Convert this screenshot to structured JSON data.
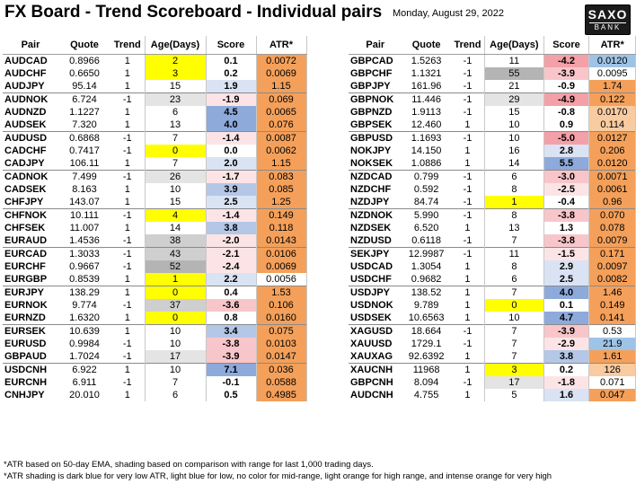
{
  "header": {
    "title": "FX Board - Trend Scoreboard - Individual pairs",
    "date": "Monday, August 29, 2022",
    "logo_top": "SAXO",
    "logo_bottom": "BANK"
  },
  "columns": [
    "Pair",
    "Quote",
    "Trend",
    "Age(Days)",
    "Score",
    "ATR*"
  ],
  "colors": {
    "age_yellow": "#ffff00",
    "age_grey_dark": "#b4b4b4",
    "age_grey_mid": "#cfcfcf",
    "age_grey_light": "#e4e4e4",
    "score_blue_dark": "#8eaadb",
    "score_blue_mid": "#b4c7e7",
    "score_blue_light": "#dae3f3",
    "score_red_dark": "#f4a0a8",
    "score_red_mid": "#f8c6ca",
    "score_red_light": "#fce4e6",
    "atr_dark_blue": "#9dc3e6",
    "atr_light_blue": "#ddebf7",
    "atr_light_orange": "#f8cba0",
    "atr_orange": "#f4a05a"
  },
  "left_groups": [
    [
      {
        "pair": "AUDCAD",
        "quote": "0.8966",
        "trend": "1",
        "age": "2",
        "score": "0.1",
        "atr": "0.0072",
        "age_tone": "yellow",
        "score_tone": "",
        "atr_tone": "orange"
      },
      {
        "pair": "AUDCHF",
        "quote": "0.6650",
        "trend": "1",
        "age": "3",
        "score": "0.2",
        "atr": "0.0069",
        "age_tone": "yellow",
        "score_tone": "",
        "atr_tone": "orange"
      },
      {
        "pair": "AUDJPY",
        "quote": "95.14",
        "trend": "1",
        "age": "15",
        "score": "1.9",
        "atr": "1.15",
        "age_tone": "",
        "score_tone": "blue_light",
        "atr_tone": "orange"
      }
    ],
    [
      {
        "pair": "AUDNOK",
        "quote": "6.724",
        "trend": "-1",
        "age": "23",
        "score": "-1.9",
        "atr": "0.069",
        "age_tone": "grey_light",
        "score_tone": "red_light",
        "atr_tone": "orange"
      },
      {
        "pair": "AUDNZD",
        "quote": "1.1227",
        "trend": "1",
        "age": "6",
        "score": "4.5",
        "atr": "0.0065",
        "age_tone": "",
        "score_tone": "blue_dark",
        "atr_tone": "orange"
      },
      {
        "pair": "AUDSEK",
        "quote": "7.320",
        "trend": "1",
        "age": "13",
        "score": "4.0",
        "atr": "0.076",
        "age_tone": "",
        "score_tone": "blue_dark",
        "atr_tone": "orange"
      }
    ],
    [
      {
        "pair": "AUDUSD",
        "quote": "0.6868",
        "trend": "-1",
        "age": "7",
        "score": "-1.4",
        "atr": "0.0087",
        "age_tone": "",
        "score_tone": "red_light",
        "atr_tone": "orange"
      },
      {
        "pair": "CADCHF",
        "quote": "0.7417",
        "trend": "-1",
        "age": "0",
        "score": "0.0",
        "atr": "0.0062",
        "age_tone": "yellow",
        "score_tone": "",
        "atr_tone": "orange"
      },
      {
        "pair": "CADJPY",
        "quote": "106.11",
        "trend": "1",
        "age": "7",
        "score": "2.0",
        "atr": "1.15",
        "age_tone": "",
        "score_tone": "blue_light",
        "atr_tone": "orange"
      }
    ],
    [
      {
        "pair": "CADNOK",
        "quote": "7.499",
        "trend": "-1",
        "age": "26",
        "score": "-1.7",
        "atr": "0.083",
        "age_tone": "grey_light",
        "score_tone": "red_light",
        "atr_tone": "orange"
      },
      {
        "pair": "CADSEK",
        "quote": "8.163",
        "trend": "1",
        "age": "10",
        "score": "3.9",
        "atr": "0.085",
        "age_tone": "",
        "score_tone": "blue_mid",
        "atr_tone": "orange"
      },
      {
        "pair": "CHFJPY",
        "quote": "143.07",
        "trend": "1",
        "age": "15",
        "score": "2.5",
        "atr": "1.25",
        "age_tone": "",
        "score_tone": "blue_light",
        "atr_tone": "orange"
      }
    ],
    [
      {
        "pair": "CHFNOK",
        "quote": "10.111",
        "trend": "-1",
        "age": "4",
        "score": "-1.4",
        "atr": "0.149",
        "age_tone": "yellow",
        "score_tone": "red_light",
        "atr_tone": "orange"
      },
      {
        "pair": "CHFSEK",
        "quote": "11.007",
        "trend": "1",
        "age": "14",
        "score": "3.8",
        "atr": "0.118",
        "age_tone": "",
        "score_tone": "blue_mid",
        "atr_tone": "orange"
      },
      {
        "pair": "EURAUD",
        "quote": "1.4536",
        "trend": "-1",
        "age": "38",
        "score": "-2.0",
        "atr": "0.0143",
        "age_tone": "grey_mid",
        "score_tone": "red_light",
        "atr_tone": "orange"
      }
    ],
    [
      {
        "pair": "EURCAD",
        "quote": "1.3033",
        "trend": "-1",
        "age": "43",
        "score": "-2.1",
        "atr": "0.0106",
        "age_tone": "grey_mid",
        "score_tone": "red_light",
        "atr_tone": "orange"
      },
      {
        "pair": "EURCHF",
        "quote": "0.9667",
        "trend": "-1",
        "age": "52",
        "score": "-2.4",
        "atr": "0.0069",
        "age_tone": "grey_dark",
        "score_tone": "red_light",
        "atr_tone": "orange"
      },
      {
        "pair": "EURGBP",
        "quote": "0.8539",
        "trend": "1",
        "age": "1",
        "score": "2.2",
        "atr": "0.0056",
        "age_tone": "yellow",
        "score_tone": "blue_light",
        "atr_tone": ""
      }
    ],
    [
      {
        "pair": "EURJPY",
        "quote": "138.29",
        "trend": "1",
        "age": "0",
        "score": "0.4",
        "atr": "1.53",
        "age_tone": "yellow",
        "score_tone": "",
        "atr_tone": "orange"
      },
      {
        "pair": "EURNOK",
        "quote": "9.774",
        "trend": "-1",
        "age": "37",
        "score": "-3.6",
        "atr": "0.106",
        "age_tone": "grey_mid",
        "score_tone": "red_mid",
        "atr_tone": "orange"
      },
      {
        "pair": "EURNZD",
        "quote": "1.6320",
        "trend": "1",
        "age": "0",
        "score": "0.8",
        "atr": "0.0160",
        "age_tone": "yellow",
        "score_tone": "",
        "atr_tone": "orange"
      }
    ],
    [
      {
        "pair": "EURSEK",
        "quote": "10.639",
        "trend": "1",
        "age": "10",
        "score": "3.4",
        "atr": "0.075",
        "age_tone": "",
        "score_tone": "blue_mid",
        "atr_tone": "orange"
      },
      {
        "pair": "EURUSD",
        "quote": "0.9984",
        "trend": "-1",
        "age": "10",
        "score": "-3.8",
        "atr": "0.0103",
        "age_tone": "",
        "score_tone": "red_mid",
        "atr_tone": "orange"
      },
      {
        "pair": "GBPAUD",
        "quote": "1.7024",
        "trend": "-1",
        "age": "17",
        "score": "-3.9",
        "atr": "0.0147",
        "age_tone": "grey_light",
        "score_tone": "red_mid",
        "atr_tone": "orange"
      }
    ],
    [
      {
        "pair": "USDCNH",
        "quote": "6.922",
        "trend": "1",
        "age": "10",
        "score": "7.1",
        "atr": "0.036",
        "age_tone": "",
        "score_tone": "blue_dark",
        "atr_tone": "orange"
      },
      {
        "pair": "EURCNH",
        "quote": "6.911",
        "trend": "-1",
        "age": "7",
        "score": "-0.1",
        "atr": "0.0588",
        "age_tone": "",
        "score_tone": "",
        "atr_tone": "orange"
      },
      {
        "pair": "CNHJPY",
        "quote": "20.010",
        "trend": "1",
        "age": "6",
        "score": "0.5",
        "atr": "0.4985",
        "age_tone": "",
        "score_tone": "",
        "atr_tone": "orange"
      }
    ]
  ],
  "right_groups": [
    [
      {
        "pair": "GBPCAD",
        "quote": "1.5263",
        "trend": "-1",
        "age": "11",
        "score": "-4.2",
        "atr": "0.0120",
        "age_tone": "",
        "score_tone": "red_dark",
        "atr_tone": "dark_blue"
      },
      {
        "pair": "GBPCHF",
        "quote": "1.1321",
        "trend": "-1",
        "age": "55",
        "score": "-3.9",
        "atr": "0.0095",
        "age_tone": "grey_dark",
        "score_tone": "red_mid",
        "atr_tone": ""
      },
      {
        "pair": "GBPJPY",
        "quote": "161.96",
        "trend": "-1",
        "age": "21",
        "score": "-0.9",
        "atr": "1.74",
        "age_tone": "",
        "score_tone": "",
        "atr_tone": "orange"
      }
    ],
    [
      {
        "pair": "GBPNOK",
        "quote": "11.446",
        "trend": "-1",
        "age": "29",
        "score": "-4.9",
        "atr": "0.122",
        "age_tone": "grey_light",
        "score_tone": "red_dark",
        "atr_tone": "orange"
      },
      {
        "pair": "GBPNZD",
        "quote": "1.9113",
        "trend": "-1",
        "age": "15",
        "score": "-0.8",
        "atr": "0.0170",
        "age_tone": "",
        "score_tone": "",
        "atr_tone": "light_orange"
      },
      {
        "pair": "GBPSEK",
        "quote": "12.460",
        "trend": "1",
        "age": "10",
        "score": "0.9",
        "atr": "0.114",
        "age_tone": "",
        "score_tone": "",
        "atr_tone": "light_orange"
      }
    ],
    [
      {
        "pair": "GBPUSD",
        "quote": "1.1693",
        "trend": "-1",
        "age": "10",
        "score": "-5.0",
        "atr": "0.0127",
        "age_tone": "",
        "score_tone": "red_dark",
        "atr_tone": "orange"
      },
      {
        "pair": "NOKJPY",
        "quote": "14.150",
        "trend": "1",
        "age": "16",
        "score": "2.8",
        "atr": "0.206",
        "age_tone": "",
        "score_tone": "blue_light",
        "atr_tone": "orange"
      },
      {
        "pair": "NOKSEK",
        "quote": "1.0886",
        "trend": "1",
        "age": "14",
        "score": "5.5",
        "atr": "0.0120",
        "age_tone": "",
        "score_tone": "blue_dark",
        "atr_tone": "orange"
      }
    ],
    [
      {
        "pair": "NZDCAD",
        "quote": "0.799",
        "trend": "-1",
        "age": "6",
        "score": "-3.0",
        "atr": "0.0071",
        "age_tone": "",
        "score_tone": "red_mid",
        "atr_tone": "orange"
      },
      {
        "pair": "NZDCHF",
        "quote": "0.592",
        "trend": "-1",
        "age": "8",
        "score": "-2.5",
        "atr": "0.0061",
        "age_tone": "",
        "score_tone": "red_light",
        "atr_tone": "orange"
      },
      {
        "pair": "NZDJPY",
        "quote": "84.74",
        "trend": "-1",
        "age": "1",
        "score": "-0.4",
        "atr": "0.96",
        "age_tone": "yellow",
        "score_tone": "",
        "atr_tone": "orange"
      }
    ],
    [
      {
        "pair": "NZDNOK",
        "quote": "5.990",
        "trend": "-1",
        "age": "8",
        "score": "-3.8",
        "atr": "0.070",
        "age_tone": "",
        "score_tone": "red_mid",
        "atr_tone": "orange"
      },
      {
        "pair": "NZDSEK",
        "quote": "6.520",
        "trend": "1",
        "age": "13",
        "score": "1.3",
        "atr": "0.078",
        "age_tone": "",
        "score_tone": "",
        "atr_tone": "orange"
      },
      {
        "pair": "NZDUSD",
        "quote": "0.6118",
        "trend": "-1",
        "age": "7",
        "score": "-3.8",
        "atr": "0.0079",
        "age_tone": "",
        "score_tone": "red_mid",
        "atr_tone": "orange"
      }
    ],
    [
      {
        "pair": "SEKJPY",
        "quote": "12.9987",
        "trend": "-1",
        "age": "11",
        "score": "-1.5",
        "atr": "0.171",
        "age_tone": "",
        "score_tone": "red_light",
        "atr_tone": "orange"
      },
      {
        "pair": "USDCAD",
        "quote": "1.3054",
        "trend": "1",
        "age": "8",
        "score": "2.9",
        "atr": "0.0097",
        "age_tone": "",
        "score_tone": "blue_light",
        "atr_tone": "orange"
      },
      {
        "pair": "USDCHF",
        "quote": "0.9682",
        "trend": "1",
        "age": "6",
        "score": "2.5",
        "atr": "0.0082",
        "age_tone": "",
        "score_tone": "blue_light",
        "atr_tone": "orange"
      }
    ],
    [
      {
        "pair": "USDJPY",
        "quote": "138.52",
        "trend": "1",
        "age": "7",
        "score": "4.0",
        "atr": "1.46",
        "age_tone": "",
        "score_tone": "blue_dark",
        "atr_tone": "orange"
      },
      {
        "pair": "USDNOK",
        "quote": "9.789",
        "trend": "1",
        "age": "0",
        "score": "0.1",
        "atr": "0.149",
        "age_tone": "yellow",
        "score_tone": "",
        "atr_tone": "orange"
      },
      {
        "pair": "USDSEK",
        "quote": "10.6563",
        "trend": "1",
        "age": "10",
        "score": "4.7",
        "atr": "0.141",
        "age_tone": "",
        "score_tone": "blue_dark",
        "atr_tone": "orange"
      }
    ],
    [
      {
        "pair": "XAGUSD",
        "quote": "18.664",
        "trend": "-1",
        "age": "7",
        "score": "-3.9",
        "atr": "0.53",
        "age_tone": "",
        "score_tone": "red_mid",
        "atr_tone": ""
      },
      {
        "pair": "XAUUSD",
        "quote": "1729.1",
        "trend": "-1",
        "age": "7",
        "score": "-2.9",
        "atr": "21.9",
        "age_tone": "",
        "score_tone": "red_light",
        "atr_tone": "dark_blue"
      },
      {
        "pair": "XAUXAG",
        "quote": "92.6392",
        "trend": "1",
        "age": "7",
        "score": "3.8",
        "atr": "1.61",
        "age_tone": "",
        "score_tone": "blue_mid",
        "atr_tone": "orange"
      }
    ],
    [
      {
        "pair": "XAUCNH",
        "quote": "11968",
        "trend": "1",
        "age": "3",
        "score": "0.2",
        "atr": "126",
        "age_tone": "yellow",
        "score_tone": "",
        "atr_tone": "light_orange"
      },
      {
        "pair": "GBPCNH",
        "quote": "8.094",
        "trend": "-1",
        "age": "17",
        "score": "-1.8",
        "atr": "0.071",
        "age_tone": "grey_light",
        "score_tone": "red_light",
        "atr_tone": ""
      },
      {
        "pair": "AUDCNH",
        "quote": "4.755",
        "trend": "1",
        "age": "5",
        "score": "1.6",
        "atr": "0.047",
        "age_tone": "",
        "score_tone": "blue_light",
        "atr_tone": "orange"
      }
    ]
  ],
  "notes": [
    "*ATR based on 50-day EMA, shading based on comparison with range for last 1,000 trading days.",
    "*ATR shading is dark blue for very low ATR, light blue for low, no color for mid-range, light orange for high range, and intense orange for very high"
  ]
}
